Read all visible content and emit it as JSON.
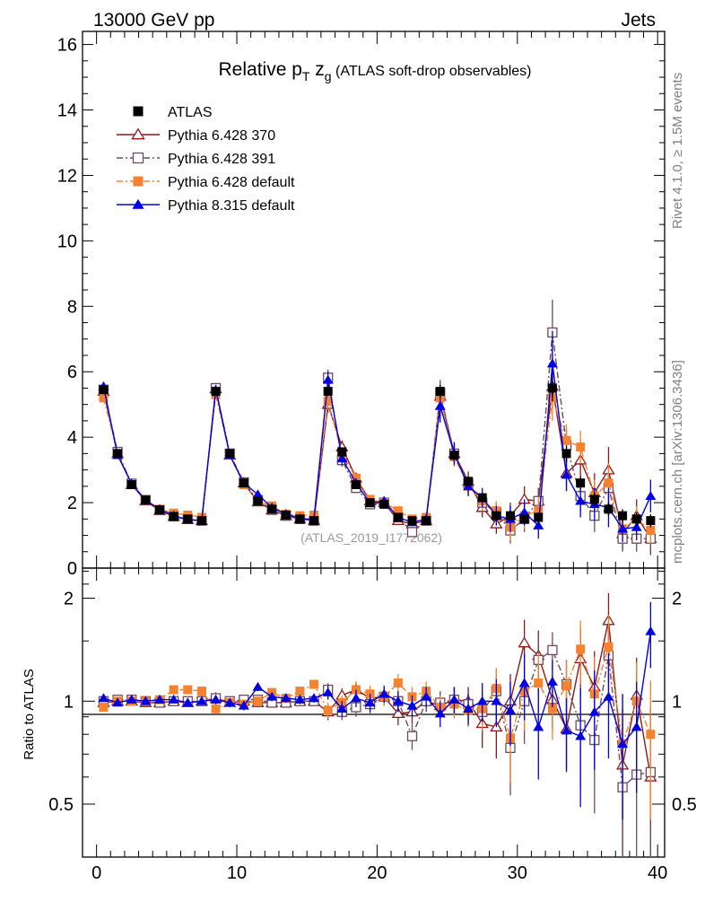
{
  "header": {
    "left": "13000 GeV pp",
    "right": "Jets"
  },
  "side_labels": {
    "rivet": "Rivet 4.1.0, ≥ 1.5M events",
    "mcplots": "mcplots.cern.ch [arXiv:1306.3436]"
  },
  "chart_data": {
    "type": "line",
    "title_main": "Relative p",
    "title_sub1": "T",
    "title_z": " z",
    "title_sub2": "g",
    "title_rest": " (ATLAS soft-drop observables)",
    "watermark": "(ATLAS_2019_I1772062)",
    "ratio_ylabel": "Ratio to ATLAS",
    "xlim": [
      -1,
      40.5
    ],
    "ylim_main": [
      0,
      16.4
    ],
    "ylim_ratio": [
      0.35,
      2.45
    ],
    "x_ticks": [
      0,
      10,
      20,
      30,
      40
    ],
    "x_tick_labels": [
      "0",
      "10",
      "20",
      "30",
      "40"
    ],
    "y_ticks_main": [
      0,
      2,
      4,
      6,
      8,
      10,
      12,
      14,
      16
    ],
    "y_tick_labels_main": [
      "0",
      "2",
      "4",
      "6",
      "8",
      "10",
      "12",
      "14",
      "16"
    ],
    "y_ticks_ratio": [
      0.5,
      1,
      2
    ],
    "y_tick_labels_ratio": [
      "0.5",
      "1",
      "2"
    ],
    "x": [
      0.5,
      1.5,
      2.5,
      3.5,
      4.5,
      5.5,
      6.5,
      7.5,
      8.5,
      9.5,
      10.5,
      11.5,
      12.5,
      13.5,
      14.5,
      15.5,
      16.5,
      17.5,
      18.5,
      19.5,
      20.5,
      21.5,
      22.5,
      23.5,
      24.5,
      25.5,
      26.5,
      27.5,
      28.5,
      29.5,
      30.5,
      31.5,
      32.5,
      33.5,
      34.5,
      35.5,
      36.5,
      37.5,
      38.5,
      39.5
    ],
    "series": [
      {
        "name": "ATLAS",
        "color": "#000000",
        "marker": "square-filled",
        "line": "none",
        "values": [
          5.45,
          3.5,
          2.55,
          2.08,
          1.78,
          1.58,
          1.5,
          1.45,
          5.4,
          3.5,
          2.6,
          2.05,
          1.8,
          1.62,
          1.5,
          1.45,
          5.4,
          3.55,
          2.55,
          2.0,
          1.95,
          1.55,
          1.45,
          1.45,
          5.4,
          3.45,
          2.65,
          2.15,
          1.6,
          1.6,
          1.5,
          1.55,
          5.5,
          3.5,
          2.6,
          2.1,
          1.8,
          1.6,
          1.5,
          1.45
        ],
        "errors": [
          0.05,
          0.05,
          0.05,
          0.04,
          0.04,
          0.04,
          0.04,
          0.04,
          0.1,
          0.06,
          0.05,
          0.04,
          0.04,
          0.04,
          0.04,
          0.04,
          0.15,
          0.08,
          0.06,
          0.05,
          0.05,
          0.05,
          0.05,
          0.05,
          0.2,
          0.12,
          0.1,
          0.08,
          0.08,
          0.08,
          0.08,
          0.08,
          0.4,
          0.25,
          0.2,
          0.2,
          0.2,
          0.2,
          0.2,
          0.2
        ]
      },
      {
        "name": "Pythia 6.428 370",
        "color": "#8b1a1a",
        "marker": "triangle-open",
        "line": "solid",
        "values": [
          5.4,
          3.5,
          2.55,
          2.05,
          1.76,
          1.58,
          1.48,
          1.45,
          5.48,
          3.45,
          2.6,
          2.02,
          1.78,
          1.6,
          1.5,
          1.45,
          5.0,
          3.7,
          2.75,
          2.05,
          2.0,
          1.45,
          1.35,
          1.45,
          5.25,
          3.5,
          2.65,
          1.85,
          1.35,
          1.6,
          2.1,
          2.05,
          5.55,
          2.9,
          3.3,
          2.3,
          3.0,
          1.05,
          1.6,
          0.9
        ],
        "errors": [
          0.1,
          0.08,
          0.06,
          0.05,
          0.05,
          0.05,
          0.05,
          0.05,
          0.15,
          0.1,
          0.08,
          0.07,
          0.06,
          0.06,
          0.06,
          0.06,
          0.25,
          0.2,
          0.15,
          0.12,
          0.12,
          0.12,
          0.12,
          0.12,
          0.4,
          0.3,
          0.3,
          0.3,
          0.3,
          0.4,
          0.4,
          0.4,
          0.7,
          0.5,
          0.6,
          0.6,
          0.7,
          0.5,
          0.5,
          0.5
        ],
        "ratio": [
          0.99,
          1.0,
          1.0,
          0.99,
          0.99,
          1.0,
          0.99,
          1.0,
          1.02,
          0.99,
          1.0,
          0.99,
          0.99,
          0.99,
          1.0,
          1.0,
          0.93,
          1.04,
          1.08,
          1.02,
          1.03,
          0.92,
          0.93,
          1.0,
          0.97,
          1.01,
          1.0,
          0.86,
          0.84,
          1.0,
          1.48,
          1.36,
          1.01,
          0.83,
          1.33,
          1.1,
          1.72,
          0.65,
          1.04,
          0.6
        ],
        "ratio_errors": [
          0.02,
          0.02,
          0.02,
          0.02,
          0.02,
          0.02,
          0.02,
          0.02,
          0.03,
          0.03,
          0.03,
          0.03,
          0.03,
          0.03,
          0.03,
          0.03,
          0.05,
          0.05,
          0.06,
          0.06,
          0.06,
          0.07,
          0.07,
          0.07,
          0.08,
          0.09,
          0.1,
          0.13,
          0.16,
          0.2,
          0.25,
          0.25,
          0.18,
          0.2,
          0.3,
          0.3,
          0.35,
          0.3,
          0.3,
          0.35
        ]
      },
      {
        "name": "Pythia 6.428 391",
        "color": "#6e4a5e",
        "marker": "square-open",
        "line": "dashdot",
        "values": [
          5.45,
          3.55,
          2.58,
          2.08,
          1.77,
          1.58,
          1.5,
          1.45,
          5.5,
          3.5,
          2.62,
          2.08,
          1.78,
          1.6,
          1.5,
          1.45,
          5.82,
          3.3,
          2.45,
          1.95,
          2.0,
          1.55,
          1.1,
          1.45,
          5.35,
          3.5,
          2.6,
          2.0,
          1.7,
          1.15,
          1.5,
          2.05,
          7.2,
          3.75,
          2.2,
          1.6,
          2.45,
          0.9,
          0.9,
          0.9
        ],
        "errors": [
          0.1,
          0.08,
          0.06,
          0.05,
          0.05,
          0.05,
          0.05,
          0.05,
          0.15,
          0.1,
          0.08,
          0.07,
          0.06,
          0.06,
          0.06,
          0.06,
          0.25,
          0.2,
          0.15,
          0.12,
          0.12,
          0.12,
          0.12,
          0.12,
          0.4,
          0.3,
          0.3,
          0.3,
          0.3,
          0.4,
          0.4,
          0.4,
          1.0,
          0.5,
          0.5,
          0.5,
          0.6,
          0.4,
          0.4,
          0.4
        ],
        "ratio": [
          1.0,
          1.01,
          1.01,
          1.0,
          0.99,
          1.0,
          1.0,
          1.0,
          1.02,
          1.0,
          1.01,
          1.01,
          0.99,
          0.99,
          1.0,
          1.0,
          1.08,
          0.93,
          0.96,
          0.98,
          1.03,
          1.0,
          0.79,
          1.0,
          0.99,
          1.01,
          0.98,
          0.93,
          1.07,
          0.73,
          1.0,
          1.32,
          1.41,
          1.12,
          0.85,
          0.77,
          1.36,
          0.56,
          0.61,
          0.62
        ],
        "ratio_errors": [
          0.02,
          0.02,
          0.02,
          0.02,
          0.02,
          0.02,
          0.02,
          0.02,
          0.03,
          0.03,
          0.03,
          0.03,
          0.03,
          0.03,
          0.03,
          0.03,
          0.05,
          0.05,
          0.06,
          0.06,
          0.06,
          0.07,
          0.07,
          0.07,
          0.08,
          0.09,
          0.1,
          0.13,
          0.16,
          0.2,
          0.25,
          0.25,
          0.18,
          0.2,
          0.3,
          0.3,
          0.35,
          0.3,
          0.3,
          0.35
        ]
      },
      {
        "name": "Pythia 6.428 default",
        "color": "#f58231",
        "marker": "square-filled",
        "line": "dashdot",
        "values": [
          5.2,
          3.5,
          2.55,
          2.08,
          1.8,
          1.68,
          1.62,
          1.55,
          5.3,
          3.45,
          2.55,
          2.05,
          1.9,
          1.65,
          1.6,
          1.62,
          5.1,
          3.5,
          2.75,
          2.1,
          2.0,
          1.75,
          1.5,
          1.55,
          5.2,
          3.4,
          2.5,
          2.05,
          1.75,
          1.25,
          1.6,
          1.75,
          5.2,
          3.9,
          3.7,
          2.2,
          2.6,
          1.2,
          1.5,
          1.15
        ],
        "errors": [
          0.1,
          0.08,
          0.06,
          0.05,
          0.05,
          0.05,
          0.05,
          0.05,
          0.15,
          0.1,
          0.08,
          0.07,
          0.06,
          0.06,
          0.06,
          0.06,
          0.25,
          0.2,
          0.15,
          0.12,
          0.12,
          0.12,
          0.12,
          0.12,
          0.4,
          0.3,
          0.3,
          0.3,
          0.3,
          0.4,
          0.4,
          0.4,
          0.7,
          0.5,
          0.5,
          0.5,
          0.6,
          0.4,
          0.4,
          0.4
        ],
        "ratio": [
          0.96,
          1.0,
          1.0,
          1.0,
          1.01,
          1.08,
          1.08,
          1.07,
          0.95,
          0.99,
          0.98,
          1.0,
          1.06,
          1.02,
          1.07,
          1.12,
          0.94,
          0.99,
          1.08,
          1.05,
          1.03,
          1.13,
          1.03,
          1.07,
          0.96,
          0.98,
          0.94,
          0.95,
          1.09,
          0.78,
          1.07,
          1.13,
          0.95,
          1.11,
          1.42,
          1.05,
          1.44,
          0.75,
          1.0,
          0.8
        ],
        "ratio_errors": [
          0.02,
          0.02,
          0.02,
          0.02,
          0.02,
          0.02,
          0.02,
          0.02,
          0.03,
          0.03,
          0.03,
          0.03,
          0.03,
          0.03,
          0.03,
          0.03,
          0.05,
          0.05,
          0.06,
          0.06,
          0.06,
          0.07,
          0.07,
          0.07,
          0.08,
          0.09,
          0.1,
          0.13,
          0.16,
          0.2,
          0.25,
          0.25,
          0.18,
          0.2,
          0.3,
          0.3,
          0.35,
          0.3,
          0.3,
          0.35
        ]
      },
      {
        "name": "Pythia 8.315 default",
        "color": "#0000e0",
        "marker": "triangle-filled",
        "line": "solid",
        "values": [
          5.55,
          3.45,
          2.58,
          2.08,
          1.8,
          1.6,
          1.48,
          1.45,
          5.45,
          3.45,
          2.6,
          2.25,
          1.85,
          1.65,
          1.52,
          1.48,
          5.75,
          3.35,
          2.6,
          1.98,
          2.05,
          1.55,
          1.4,
          1.5,
          4.95,
          3.5,
          2.5,
          2.15,
          1.6,
          1.5,
          1.7,
          1.3,
          6.25,
          2.85,
          2.05,
          1.95,
          1.85,
          1.2,
          1.25,
          2.2
        ],
        "errors": [
          0.1,
          0.08,
          0.06,
          0.05,
          0.05,
          0.05,
          0.05,
          0.05,
          0.15,
          0.1,
          0.08,
          0.07,
          0.06,
          0.06,
          0.06,
          0.06,
          0.25,
          0.2,
          0.15,
          0.12,
          0.12,
          0.12,
          0.12,
          0.12,
          0.5,
          0.35,
          0.3,
          0.3,
          0.3,
          0.4,
          0.4,
          0.4,
          1.0,
          0.5,
          0.5,
          0.5,
          0.6,
          0.4,
          0.4,
          0.5
        ],
        "ratio": [
          1.02,
          0.99,
          1.01,
          1.0,
          1.01,
          1.01,
          0.99,
          1.0,
          1.01,
          0.99,
          0.97,
          1.1,
          1.03,
          1.02,
          1.01,
          1.02,
          1.06,
          0.95,
          1.02,
          0.99,
          1.05,
          1.0,
          0.97,
          1.03,
          0.92,
          1.01,
          0.95,
          1.0,
          1.0,
          0.94,
          1.13,
          0.84,
          1.14,
          0.82,
          0.79,
          0.93,
          1.03,
          0.75,
          0.84,
          1.6
        ],
        "ratio_errors": [
          0.02,
          0.02,
          0.02,
          0.02,
          0.02,
          0.02,
          0.02,
          0.02,
          0.03,
          0.03,
          0.03,
          0.03,
          0.03,
          0.03,
          0.03,
          0.03,
          0.05,
          0.05,
          0.06,
          0.06,
          0.06,
          0.07,
          0.07,
          0.07,
          0.08,
          0.09,
          0.1,
          0.13,
          0.16,
          0.2,
          0.25,
          0.25,
          0.18,
          0.2,
          0.3,
          0.3,
          0.35,
          0.3,
          0.3,
          0.35
        ]
      }
    ]
  }
}
